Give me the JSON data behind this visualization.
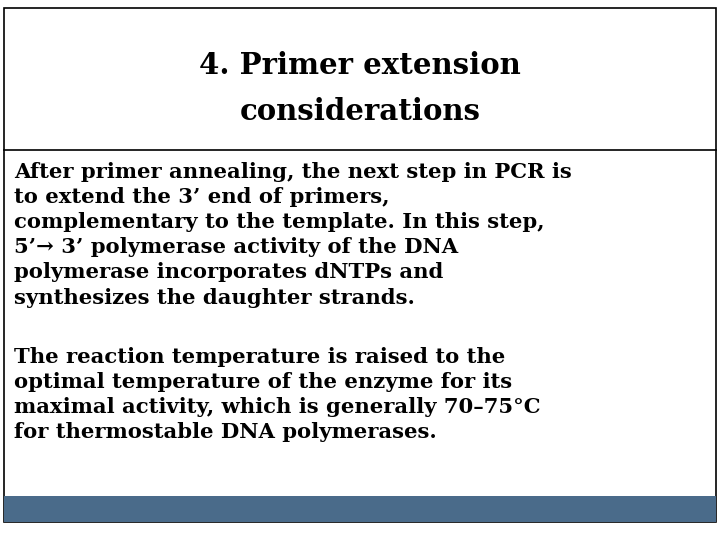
{
  "title_line1": "4. Primer extension",
  "title_line2": "considerations",
  "paragraph1": "After primer annealing, the next step in PCR is\nto extend the 3’ end of primers,\ncomplementary to the template. In this step,\n5’→ 3’ polymerase activity of the DNA\npolymerase incorporates dNTPs and\nsynthesizes the daughter strands.",
  "paragraph2": "The reaction temperature is raised to the\noptimal temperature of the enzyme for its\nmaximal activity, which is generally 70–75°C\nfor thermostable DNA polymerases.",
  "bg_color": "#ffffff",
  "title_color": "#000000",
  "text_color": "#000000",
  "border_color": "#000000",
  "footer_color": "#4a6b8a",
  "title_fontsize": 21,
  "body_fontsize": 15.2
}
